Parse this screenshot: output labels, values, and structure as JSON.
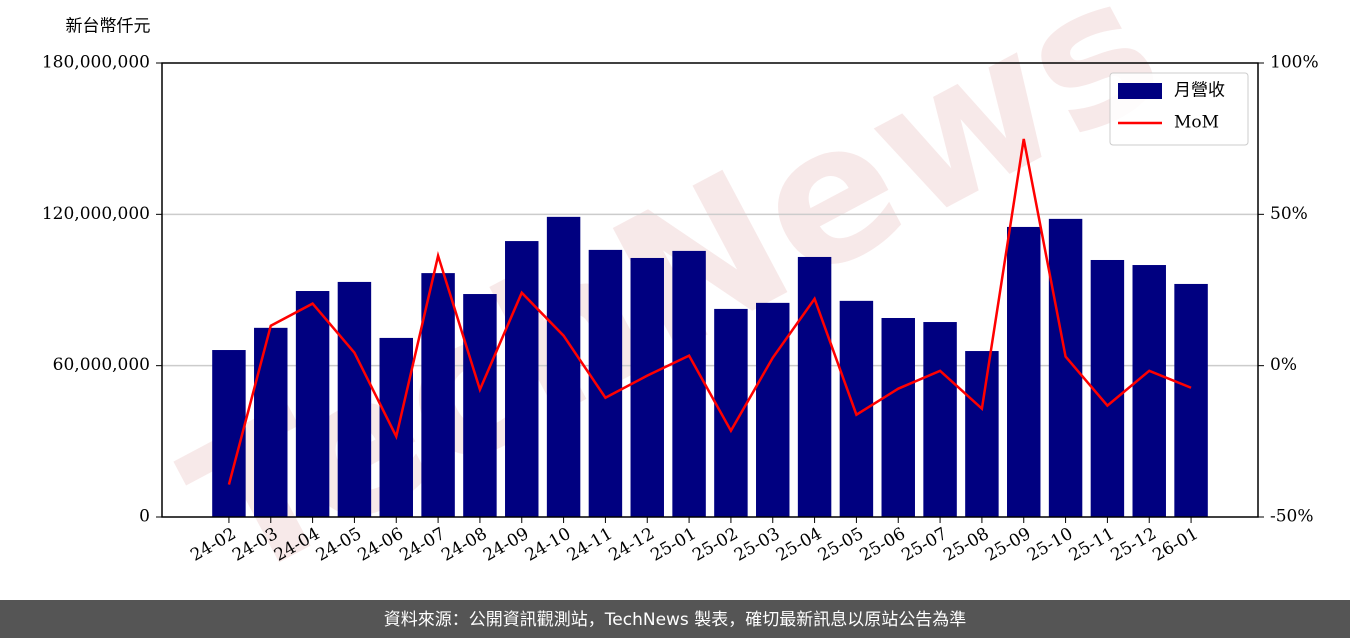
{
  "chart_data": {
    "type": "bar_line",
    "y_label": "新台幣仟元",
    "watermark": "TechNews",
    "footer": "資料來源：公開資訊觀測站，TechNews 製表，確切最新訊息以原站公告為準",
    "categories": [
      "24-02",
      "24-03",
      "24-04",
      "24-05",
      "24-06",
      "24-07",
      "24-08",
      "24-09",
      "24-10",
      "24-11",
      "24-12",
      "25-01",
      "25-02",
      "25-03",
      "25-04",
      "25-05",
      "25-06",
      "25-07",
      "25-08",
      "25-09",
      "25-10",
      "25-11",
      "25-12",
      "26-01"
    ],
    "series": [
      {
        "name": "月營收",
        "type": "bar",
        "color": "#000080",
        "values": [
          66200000,
          75000000,
          89600000,
          93200000,
          71000000,
          96700000,
          88400000,
          109400000,
          119000000,
          105900000,
          102700000,
          105500000,
          82500000,
          84900000,
          103100000,
          85700000,
          78900000,
          77300000,
          65800000,
          115000000,
          118200000,
          101900000,
          99900000,
          92400000
        ]
      },
      {
        "name": "MoM",
        "type": "line",
        "axis": "y2",
        "color": "#ff0000",
        "values": [
          -39.3,
          13.2,
          20.5,
          4.3,
          -23.4,
          36.3,
          -7.9,
          24.1,
          9.9,
          -10.6,
          -3.3,
          3.3,
          -21.5,
          2.6,
          22.1,
          -16.2,
          -7.6,
          -1.7,
          -14.2,
          74.9,
          3.0,
          -13.2,
          -1.7,
          -7.3
        ]
      }
    ],
    "ylim": [
      0,
      180000000
    ],
    "yticks": [
      0,
      {
        "value": 60000000,
        "label": "60,000,000"
      },
      {
        "value": 120000000,
        "label": "120,000,000"
      },
      {
        "value": 180000000,
        "label": "180,000,000"
      }
    ],
    "y2lim": [
      -50,
      100
    ],
    "y2ticks": [
      {
        "value": -50,
        "label": "-50%"
      },
      {
        "value": 0,
        "label": "0%"
      },
      {
        "value": 50,
        "label": "50%"
      },
      {
        "value": 100,
        "label": "100%"
      }
    ],
    "grid": true,
    "legend": "upper right"
  }
}
